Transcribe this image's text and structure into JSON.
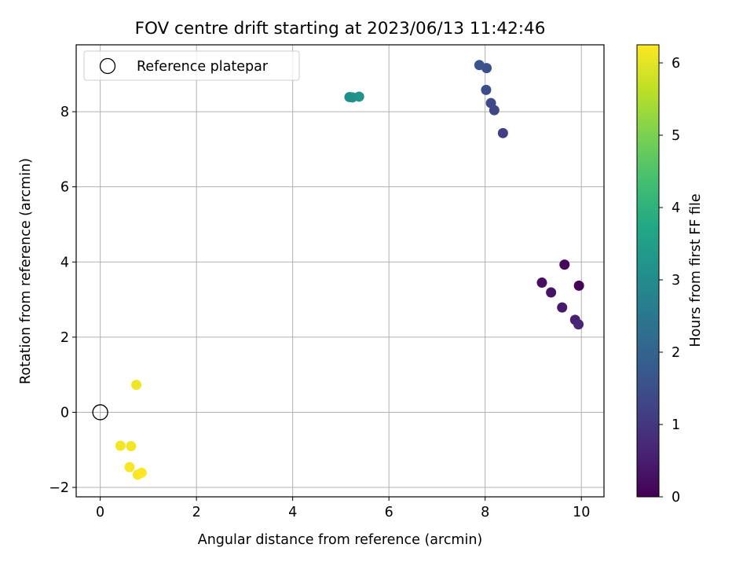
{
  "chart_data": {
    "type": "scatter",
    "title": "FOV centre drift starting at 2023/06/13 11:42:46",
    "xlabel": "Angular distance from reference (arcmin)",
    "ylabel": "Rotation from reference (arcmin)",
    "xlim": [
      -0.5,
      10.47
    ],
    "ylim": [
      -2.25,
      9.78
    ],
    "xticks": [
      0,
      2,
      4,
      6,
      8,
      10
    ],
    "yticks": [
      -2,
      0,
      2,
      4,
      6,
      8
    ],
    "grid": true,
    "legend": {
      "placement": "top-left",
      "entries": [
        "Reference platepar"
      ]
    },
    "reference_point": {
      "x": 0,
      "y": 0
    },
    "colorbar": {
      "label": "Hours from first FF file",
      "colormap": "viridis",
      "range": [
        0,
        6.25
      ],
      "ticks": [
        0,
        1,
        2,
        3,
        4,
        5,
        6
      ]
    },
    "points": [
      {
        "x": 9.95,
        "y": 3.37,
        "c": 0.05
      },
      {
        "x": 9.65,
        "y": 3.93,
        "c": 0.15
      },
      {
        "x": 9.18,
        "y": 3.45,
        "c": 0.25
      },
      {
        "x": 9.37,
        "y": 3.19,
        "c": 0.35
      },
      {
        "x": 9.6,
        "y": 2.79,
        "c": 0.45
      },
      {
        "x": 9.87,
        "y": 2.46,
        "c": 0.55
      },
      {
        "x": 9.94,
        "y": 2.34,
        "c": 0.65
      },
      {
        "x": 8.37,
        "y": 7.43,
        "c": 1.15
      },
      {
        "x": 8.19,
        "y": 8.04,
        "c": 1.25
      },
      {
        "x": 8.12,
        "y": 8.23,
        "c": 1.35
      },
      {
        "x": 8.02,
        "y": 8.58,
        "c": 1.45
      },
      {
        "x": 8.03,
        "y": 9.16,
        "c": 1.55
      },
      {
        "x": 7.88,
        "y": 9.24,
        "c": 1.65
      },
      {
        "x": 5.18,
        "y": 8.39,
        "c": 3.05
      },
      {
        "x": 5.24,
        "y": 8.38,
        "c": 3.1
      },
      {
        "x": 5.38,
        "y": 8.4,
        "c": 3.15
      },
      {
        "x": 0.75,
        "y": 0.73,
        "c": 6.1
      },
      {
        "x": 0.42,
        "y": -0.89,
        "c": 6.15
      },
      {
        "x": 0.64,
        "y": -0.9,
        "c": 6.15
      },
      {
        "x": 0.61,
        "y": -1.46,
        "c": 6.2
      },
      {
        "x": 0.78,
        "y": -1.66,
        "c": 6.2
      },
      {
        "x": 0.86,
        "y": -1.61,
        "c": 6.25
      }
    ]
  }
}
